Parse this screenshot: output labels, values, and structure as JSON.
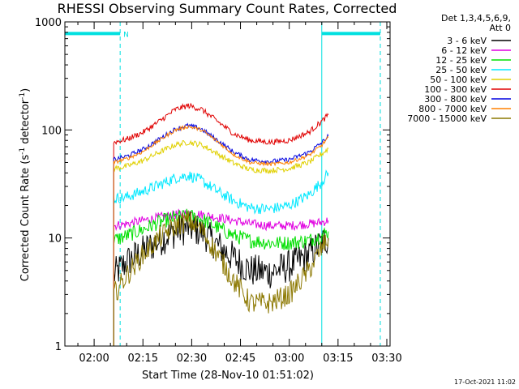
{
  "chart_data": {
    "type": "line",
    "title": "RHESSI Observing Summary Count Rates, Corrected",
    "xlabel": "Start Time (28-Nov-10 01:51:02)",
    "ylabel": {
      "main": "Corrected Count Rate (s",
      "sup1": "-1",
      "mid": " detector",
      "sup2": "-1",
      "end": ")"
    },
    "yscale": "log",
    "ylim": [
      1,
      1000
    ],
    "xlim": [
      "01:51",
      "03:31"
    ],
    "x_ticks": [
      "02:00",
      "02:15",
      "02:30",
      "02:45",
      "03:00",
      "03:15",
      "03:30"
    ],
    "y_ticks": [
      "1",
      "10",
      "100",
      "1000"
    ],
    "grid": false,
    "legend_position": "top-right",
    "legend_header": [
      "Det 1,3,4,5,6,9,",
      "Att 0"
    ],
    "series": [
      {
        "name": "3 - 6 keV",
        "color": "#000000",
        "noise": 0.18,
        "points": [
          [
            "02:06",
            4.5
          ],
          [
            "02:10",
            6
          ],
          [
            "02:15",
            7.5
          ],
          [
            "02:20",
            9.5
          ],
          [
            "02:25",
            11.5
          ],
          [
            "02:29",
            12.5
          ],
          [
            "02:33",
            11.5
          ],
          [
            "02:38",
            8.5
          ],
          [
            "02:43",
            6.5
          ],
          [
            "02:48",
            5
          ],
          [
            "02:54",
            4.8
          ],
          [
            "03:00",
            5.5
          ],
          [
            "03:06",
            7
          ],
          [
            "03:10",
            9
          ],
          [
            "03:12",
            10
          ]
        ]
      },
      {
        "name": "6 - 12 keV",
        "color": "#e000e0",
        "noise": 0.05,
        "points": [
          [
            "02:06",
            13
          ],
          [
            "02:10",
            13.5
          ],
          [
            "02:15",
            14.5
          ],
          [
            "02:20",
            15.5
          ],
          [
            "02:25",
            16.5
          ],
          [
            "02:29",
            17
          ],
          [
            "02:33",
            16.5
          ],
          [
            "02:38",
            15.5
          ],
          [
            "02:43",
            14.5
          ],
          [
            "02:48",
            13.5
          ],
          [
            "02:54",
            13
          ],
          [
            "03:00",
            13
          ],
          [
            "03:06",
            13.5
          ],
          [
            "03:10",
            14
          ],
          [
            "03:12",
            14.5
          ]
        ]
      },
      {
        "name": "12 - 25 keV",
        "color": "#00e000",
        "noise": 0.08,
        "points": [
          [
            "02:06",
            9.5
          ],
          [
            "02:10",
            10.5
          ],
          [
            "02:15",
            12
          ],
          [
            "02:20",
            14
          ],
          [
            "02:25",
            15.5
          ],
          [
            "02:29",
            16
          ],
          [
            "02:33",
            15
          ],
          [
            "02:38",
            12.5
          ],
          [
            "02:43",
            10.5
          ],
          [
            "02:48",
            9.5
          ],
          [
            "02:54",
            9
          ],
          [
            "03:00",
            9
          ],
          [
            "03:06",
            9.5
          ],
          [
            "03:10",
            10.5
          ],
          [
            "03:12",
            11.5
          ]
        ]
      },
      {
        "name": "25 - 50 keV",
        "color": "#00e8ff",
        "noise": 0.06,
        "points": [
          [
            "02:06",
            23
          ],
          [
            "02:10",
            24
          ],
          [
            "02:15",
            27
          ],
          [
            "02:20",
            31
          ],
          [
            "02:25",
            36
          ],
          [
            "02:29",
            38
          ],
          [
            "02:33",
            34
          ],
          [
            "02:38",
            27
          ],
          [
            "02:43",
            22
          ],
          [
            "02:48",
            19
          ],
          [
            "02:54",
            18.5
          ],
          [
            "03:00",
            20
          ],
          [
            "03:06",
            25
          ],
          [
            "03:10",
            33
          ],
          [
            "03:12",
            40
          ]
        ]
      },
      {
        "name": "50 - 100 keV",
        "color": "#e0d000",
        "noise": 0.03,
        "points": [
          [
            "02:06",
            44
          ],
          [
            "02:10",
            46
          ],
          [
            "02:15",
            52
          ],
          [
            "02:20",
            62
          ],
          [
            "02:25",
            73
          ],
          [
            "02:29",
            77
          ],
          [
            "02:33",
            73
          ],
          [
            "02:38",
            60
          ],
          [
            "02:43",
            49
          ],
          [
            "02:48",
            43
          ],
          [
            "02:54",
            42
          ],
          [
            "03:00",
            44
          ],
          [
            "03:06",
            50
          ],
          [
            "03:10",
            60
          ],
          [
            "03:12",
            67
          ]
        ]
      },
      {
        "name": "100 - 300 keV",
        "color": "#e00000",
        "noise": 0.03,
        "points": [
          [
            "02:06",
            77
          ],
          [
            "02:10",
            82
          ],
          [
            "02:15",
            95
          ],
          [
            "02:20",
            120
          ],
          [
            "02:25",
            155
          ],
          [
            "02:29",
            168
          ],
          [
            "02:33",
            155
          ],
          [
            "02:38",
            120
          ],
          [
            "02:43",
            92
          ],
          [
            "02:48",
            80
          ],
          [
            "02:54",
            77
          ],
          [
            "03:00",
            80
          ],
          [
            "03:06",
            95
          ],
          [
            "03:10",
            120
          ],
          [
            "03:12",
            138
          ]
        ]
      },
      {
        "name": "300 - 800 keV",
        "color": "#0000e0",
        "noise": 0.025,
        "points": [
          [
            "02:06",
            53
          ],
          [
            "02:10",
            57
          ],
          [
            "02:15",
            66
          ],
          [
            "02:20",
            82
          ],
          [
            "02:25",
            102
          ],
          [
            "02:29",
            110
          ],
          [
            "02:33",
            102
          ],
          [
            "02:38",
            80
          ],
          [
            "02:43",
            62
          ],
          [
            "02:48",
            53
          ],
          [
            "02:54",
            51
          ],
          [
            "03:00",
            53
          ],
          [
            "03:06",
            62
          ],
          [
            "03:10",
            76
          ],
          [
            "03:12",
            88
          ]
        ]
      },
      {
        "name": "800 - 7000 keV",
        "color": "#ff8000",
        "noise": 0.02,
        "points": [
          [
            "02:06",
            50
          ],
          [
            "02:10",
            54
          ],
          [
            "02:15",
            63
          ],
          [
            "02:20",
            80
          ],
          [
            "02:25",
            100
          ],
          [
            "02:29",
            108
          ],
          [
            "02:33",
            100
          ],
          [
            "02:38",
            78
          ],
          [
            "02:43",
            59
          ],
          [
            "02:48",
            50
          ],
          [
            "02:54",
            48
          ],
          [
            "03:00",
            50
          ],
          [
            "03:06",
            58
          ],
          [
            "03:10",
            72
          ],
          [
            "03:12",
            85
          ]
        ]
      },
      {
        "name": "7000 - 15000 keV",
        "color": "#8c7800",
        "noise": 0.12,
        "points": [
          [
            "02:06",
            3
          ],
          [
            "02:10",
            4.5
          ],
          [
            "02:15",
            7
          ],
          [
            "02:20",
            10
          ],
          [
            "02:25",
            13
          ],
          [
            "02:29",
            14.5
          ],
          [
            "02:33",
            12
          ],
          [
            "02:38",
            7
          ],
          [
            "02:43",
            4
          ],
          [
            "02:48",
            2.5
          ],
          [
            "02:54",
            2.5
          ],
          [
            "03:00",
            3
          ],
          [
            "03:06",
            5
          ],
          [
            "03:10",
            8
          ],
          [
            "03:12",
            10
          ]
        ]
      }
    ],
    "attenuator_bars": {
      "color": "#00e0e0",
      "marker": "N",
      "segments": [
        [
          "01:51",
          "02:08"
        ],
        [
          "03:10",
          "03:28"
        ]
      ],
      "dashed_lines": [
        "02:08",
        "03:28"
      ],
      "solid_lines": [
        "01:51",
        "03:10"
      ],
      "level": 780
    }
  },
  "footer": {
    "timestamp": "17-Oct-2021 11:02"
  }
}
